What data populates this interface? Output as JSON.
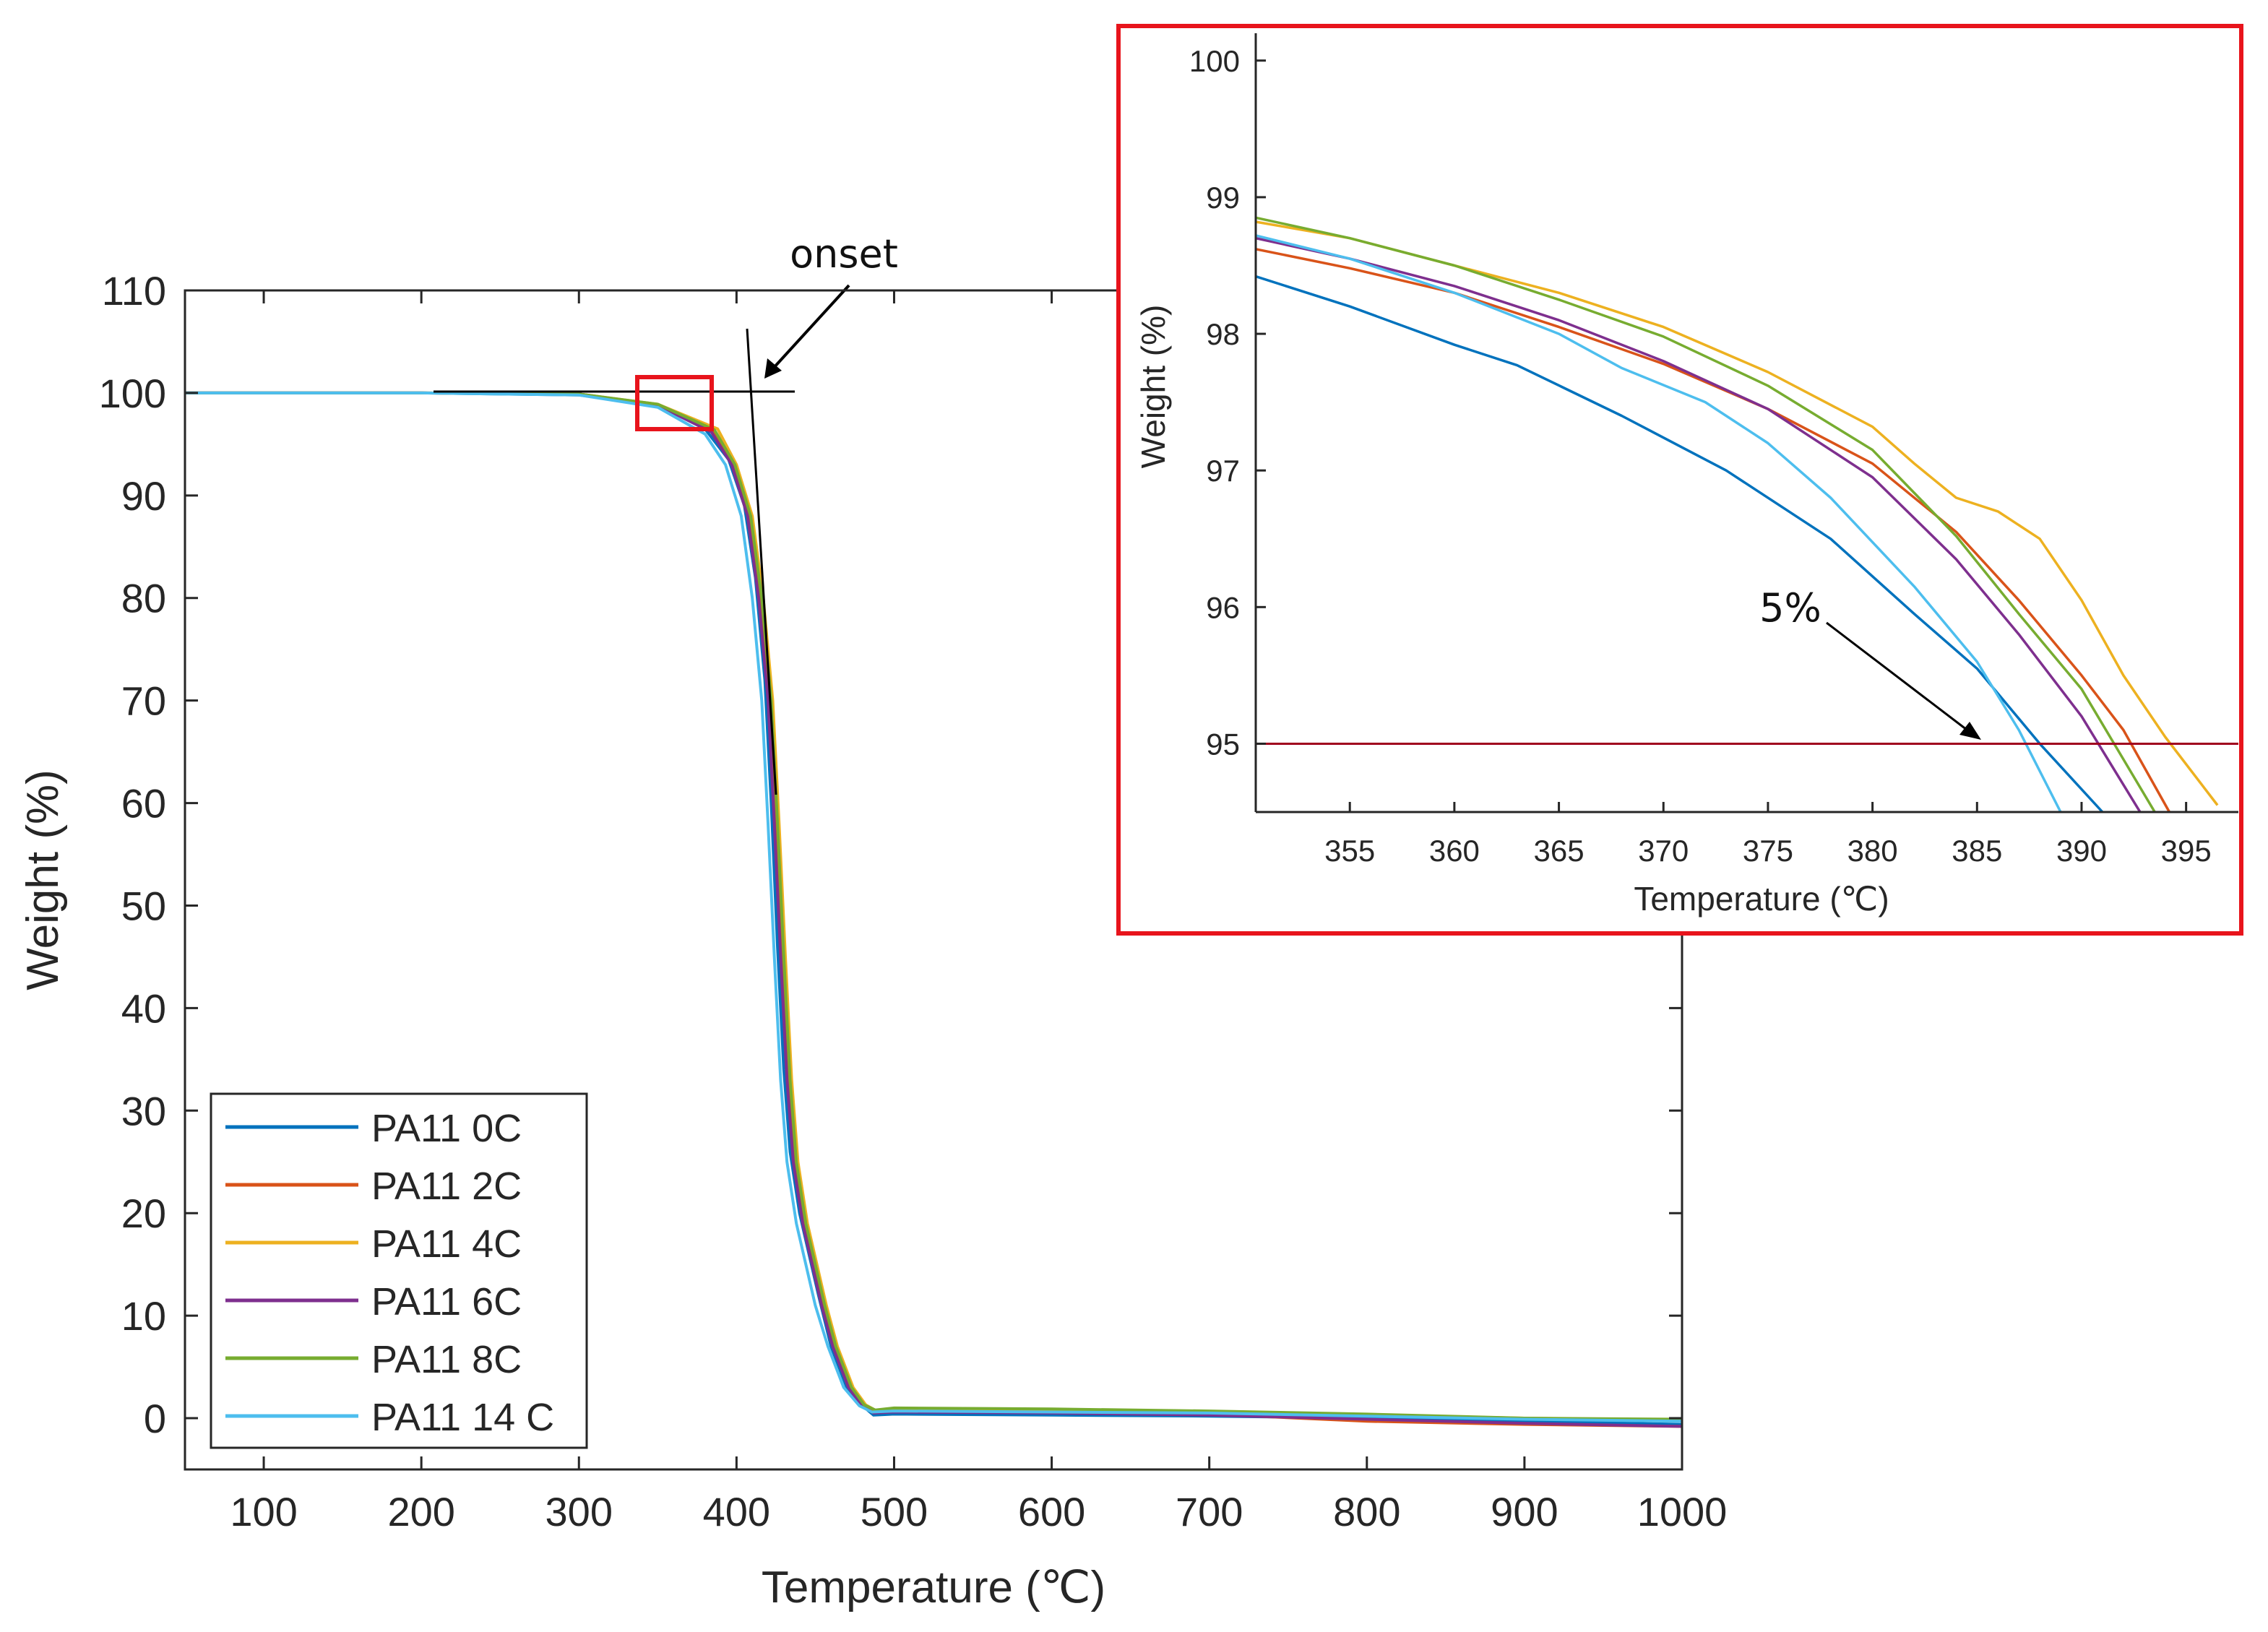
{
  "chart_data": [
    {
      "type": "line",
      "title": "",
      "xlabel": "Temperature (℃)",
      "ylabel": "Weight (%)",
      "xlim": [
        50,
        1000
      ],
      "ylim": [
        -5,
        110
      ],
      "xticks": [
        100,
        200,
        300,
        400,
        500,
        600,
        700,
        800,
        900,
        1000
      ],
      "yticks": [
        0,
        10,
        20,
        30,
        40,
        50,
        60,
        70,
        80,
        90,
        100,
        110
      ],
      "legend_position": "bottom-left",
      "series": [
        {
          "name": "PA11 0C",
          "color": "#0072BD",
          "x": [
            50,
            200,
            300,
            350,
            380,
            395,
            405,
            412,
            418,
            422,
            426,
            430,
            434,
            440,
            446,
            452,
            460,
            470,
            480,
            487,
            500,
            600,
            700,
            800,
            900,
            1000
          ],
          "y": [
            100,
            100,
            99.8,
            98.8,
            96.5,
            93.5,
            89,
            82,
            72,
            60,
            46,
            34,
            26,
            20,
            16,
            12,
            7,
            3,
            1.2,
            0.3,
            0.4,
            0.3,
            0.2,
            0,
            -0.3,
            -0.6
          ]
        },
        {
          "name": "PA11 2C",
          "color": "#D95319",
          "x": [
            50,
            200,
            300,
            350,
            385,
            398,
            408,
            415,
            421,
            425,
            429,
            433,
            437,
            443,
            449,
            455,
            462,
            472,
            481,
            488,
            500,
            600,
            700,
            800,
            900,
            1000
          ],
          "y": [
            100,
            100,
            99.9,
            98.8,
            96.3,
            93,
            88,
            80,
            70,
            58,
            45,
            33,
            25,
            19,
            15,
            11,
            7,
            3,
            1.2,
            0.6,
            0.8,
            0.6,
            0.4,
            -0.3,
            -0.6,
            -0.8
          ]
        },
        {
          "name": "PA11 4C",
          "color": "#EDB120",
          "x": [
            50,
            200,
            300,
            350,
            388,
            400,
            410,
            417,
            423,
            427,
            431,
            435,
            439,
            445,
            451,
            457,
            464,
            474,
            482,
            489,
            500,
            600,
            700,
            800,
            900,
            1000
          ],
          "y": [
            100,
            100,
            99.9,
            98.9,
            96.5,
            93,
            88,
            80,
            70,
            58,
            45,
            33,
            25,
            19,
            15,
            11,
            7,
            3,
            1.3,
            0.7,
            0.9,
            0.8,
            0.6,
            0.3,
            0,
            -0.2
          ]
        },
        {
          "name": "PA11 6C",
          "color": "#7E2F8E",
          "x": [
            50,
            200,
            300,
            350,
            384,
            397,
            407,
            414,
            420,
            424,
            428,
            432,
            436,
            442,
            448,
            454,
            461,
            471,
            480,
            487,
            500,
            600,
            700,
            800,
            900,
            1000
          ],
          "y": [
            100,
            100,
            99.9,
            98.8,
            96.2,
            93,
            88,
            80,
            70,
            58,
            45,
            33,
            25,
            19,
            15,
            11,
            7,
            3,
            1.1,
            0.5,
            0.6,
            0.5,
            0.3,
            -0.1,
            -0.5,
            -0.8
          ]
        },
        {
          "name": "PA11 8C",
          "color": "#77AC30",
          "x": [
            50,
            200,
            300,
            350,
            386,
            399,
            409,
            416,
            422,
            426,
            430,
            434,
            438,
            444,
            450,
            456,
            463,
            473,
            481,
            488,
            500,
            600,
            700,
            800,
            900,
            1000
          ],
          "y": [
            100,
            100,
            99.9,
            98.9,
            96.4,
            93,
            88,
            80,
            70,
            58,
            45,
            33,
            25,
            19,
            15,
            11,
            7,
            3,
            1.3,
            0.8,
            1,
            0.9,
            0.7,
            0.4,
            0,
            -0.1
          ]
        },
        {
          "name": "PA11 14 C",
          "color": "#4DBEEE",
          "x": [
            50,
            200,
            300,
            350,
            380,
            393,
            403,
            410,
            416,
            420,
            424,
            428,
            432,
            438,
            444,
            450,
            458,
            468,
            478,
            486,
            500,
            600,
            700,
            800,
            900,
            1000
          ],
          "y": [
            100,
            100,
            99.8,
            98.6,
            96,
            93,
            88,
            80,
            70,
            58,
            45,
            33,
            25,
            19,
            15,
            11,
            7,
            3,
            1.2,
            0.6,
            0.7,
            0.6,
            0.5,
            0.2,
            -0.1,
            -0.3
          ]
        }
      ],
      "annotations": [
        {
          "text": "onset"
        }
      ]
    },
    {
      "type": "line",
      "title": "",
      "xlabel": "Temperature (℃)",
      "ylabel": "Weight (%)",
      "xlim": [
        350.5,
        397.5
      ],
      "ylim": [
        94.5,
        100.2
      ],
      "xticks": [
        355,
        360,
        365,
        370,
        375,
        380,
        385,
        390,
        395
      ],
      "yticks": [
        95,
        96,
        97,
        98,
        99,
        100
      ],
      "reference_line": {
        "y": 95,
        "color": "#A0001E"
      },
      "series": [
        {
          "name": "PA11 0C",
          "color": "#0072BD",
          "x": [
            350.5,
            355,
            360,
            363,
            368,
            373,
            378,
            382,
            385,
            388,
            391
          ],
          "y": [
            98.42,
            98.2,
            97.92,
            97.77,
            97.4,
            97,
            96.5,
            95.95,
            95.55,
            95.0,
            94.5
          ]
        },
        {
          "name": "PA11 2C",
          "color": "#D95319",
          "x": [
            350.5,
            355,
            360,
            365,
            370,
            375,
            380,
            384,
            387,
            390,
            392,
            394.2
          ],
          "y": [
            98.62,
            98.48,
            98.3,
            98.05,
            97.78,
            97.45,
            97.05,
            96.55,
            96.05,
            95.5,
            95.1,
            94.5
          ]
        },
        {
          "name": "PA11 4C",
          "color": "#EDB120",
          "x": [
            350.5,
            355,
            360,
            365,
            370,
            375,
            380,
            382,
            384,
            386,
            388,
            390,
            392,
            394,
            396.5
          ],
          "y": [
            98.82,
            98.7,
            98.5,
            98.3,
            98.05,
            97.72,
            97.32,
            97.05,
            96.8,
            96.7,
            96.5,
            96.05,
            95.5,
            95.05,
            94.55
          ]
        },
        {
          "name": "PA11 6C",
          "color": "#7E2F8E",
          "x": [
            350.5,
            355,
            360,
            365,
            370,
            375,
            380,
            384,
            387,
            390,
            392.8
          ],
          "y": [
            98.7,
            98.55,
            98.35,
            98.1,
            97.8,
            97.45,
            96.95,
            96.35,
            95.8,
            95.2,
            94.5
          ]
        },
        {
          "name": "PA11 8C",
          "color": "#77AC30",
          "x": [
            350.5,
            355,
            360,
            365,
            370,
            375,
            380,
            384,
            387,
            390,
            393.5
          ],
          "y": [
            98.85,
            98.7,
            98.5,
            98.25,
            97.98,
            97.62,
            97.15,
            96.52,
            95.95,
            95.4,
            94.5
          ]
        },
        {
          "name": "PA11 14 C",
          "color": "#4DBEEE",
          "x": [
            350.5,
            355,
            360,
            365,
            368,
            372,
            375,
            378,
            382,
            385,
            387,
            389
          ],
          "y": [
            98.72,
            98.55,
            98.3,
            98,
            97.75,
            97.5,
            97.2,
            96.8,
            96.15,
            95.6,
            95.1,
            94.5
          ]
        }
      ],
      "annotations": [
        {
          "text": "5%"
        }
      ]
    }
  ]
}
